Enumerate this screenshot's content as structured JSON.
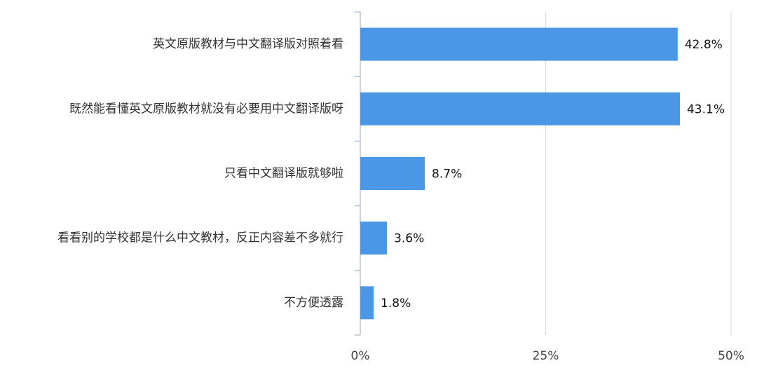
{
  "chart_data": {
    "type": "bar",
    "orientation": "horizontal",
    "categories": [
      "英文原版教材与中文翻译版对照着看",
      "既然能看懂英文原版教材就没有必要用中文翻译版呀",
      "只看中文翻译版就够啦",
      "看看别的学校都是什么中文教材，反正内容差不多就行",
      "不方便透露"
    ],
    "values": [
      42.8,
      43.1,
      8.7,
      3.6,
      1.8
    ],
    "value_labels": [
      "42.8%",
      "43.1%",
      "8.7%",
      "3.6%",
      "1.8%"
    ],
    "color": "#4a97e5",
    "xlim": [
      0,
      50
    ],
    "xticks": [
      {
        "value": 0,
        "label": "0%"
      },
      {
        "value": 25,
        "label": "25%"
      },
      {
        "value": 50,
        "label": "50%"
      }
    ],
    "grid": true
  }
}
